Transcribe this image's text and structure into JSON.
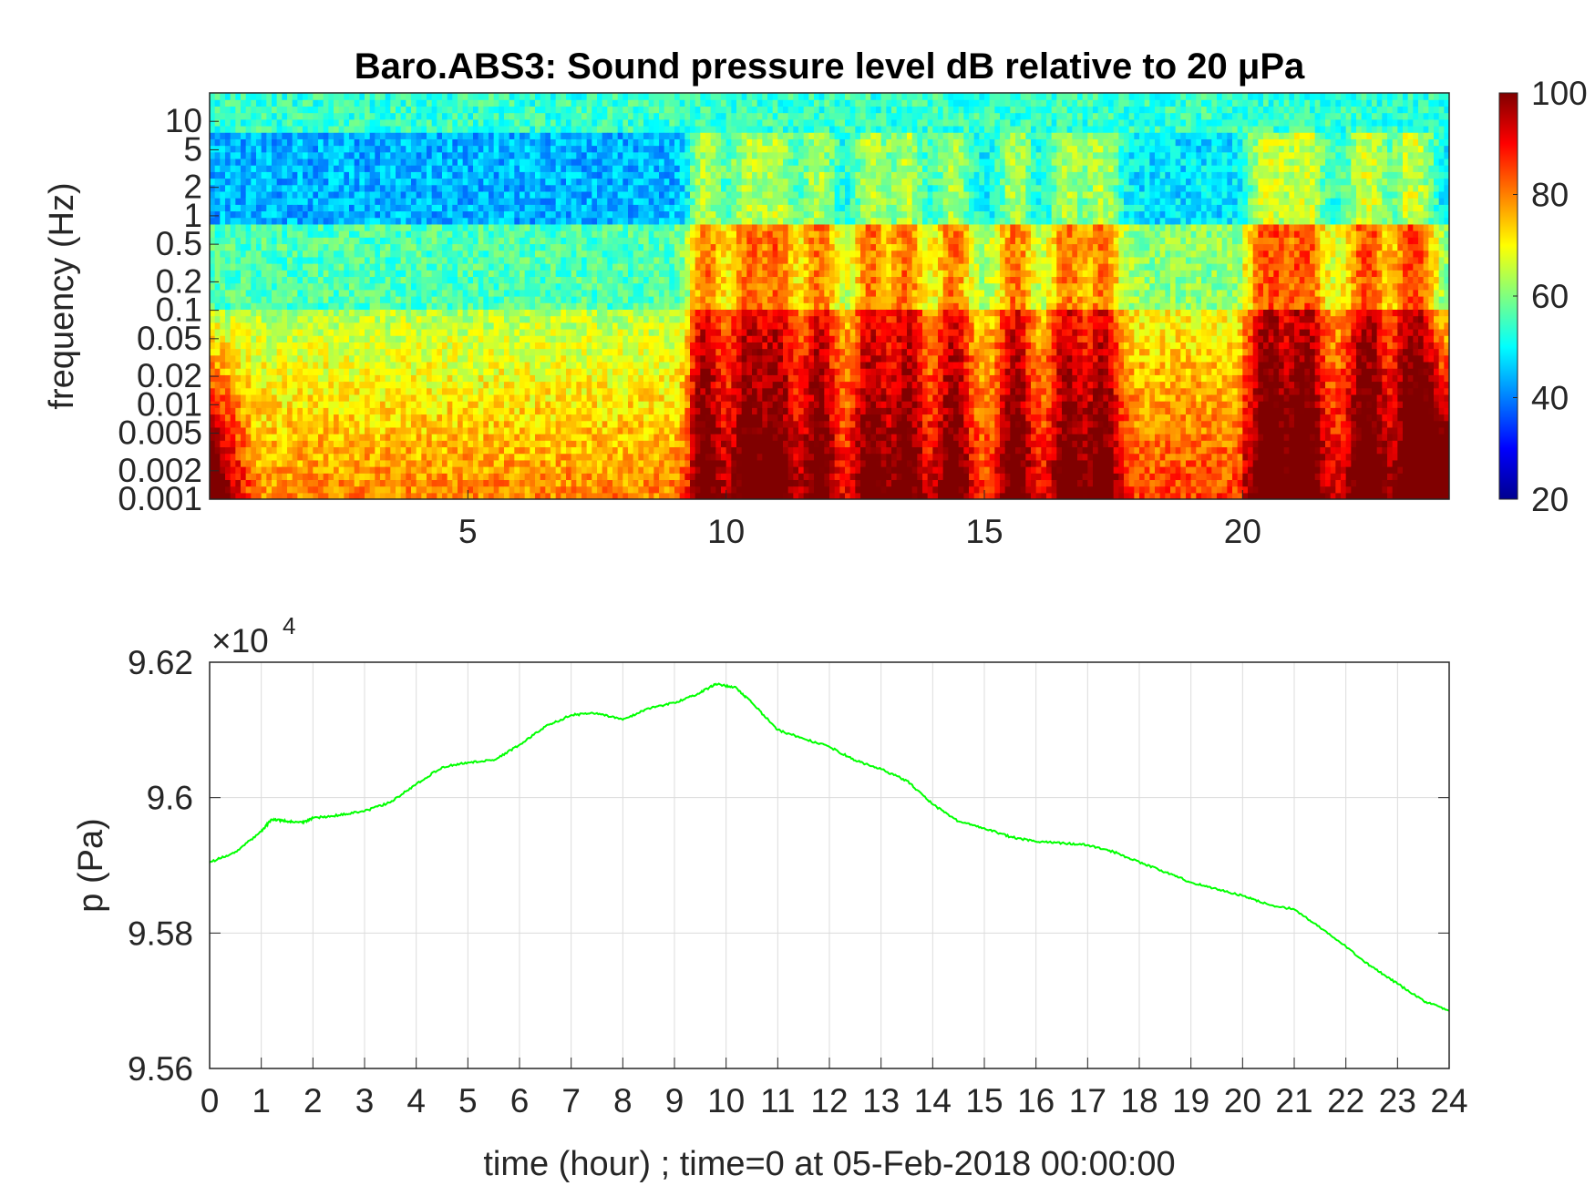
{
  "chart_data": [
    {
      "type": "heatmap",
      "title": "Baro.ABS3: Sound pressure level dB relative to 20 μPa",
      "ylabel": "frequency (Hz)",
      "xlabel": "",
      "y_scale": "log",
      "xlim": [
        0,
        24
      ],
      "ylim": [
        0.001,
        20
      ],
      "x_ticks": [
        5,
        10,
        15,
        20
      ],
      "y_ticks": [
        0.001,
        0.002,
        0.005,
        0.01,
        0.02,
        0.05,
        0.1,
        0.2,
        0.5,
        1,
        2,
        5,
        10
      ],
      "y_tick_labels": [
        "0.001",
        "0.002",
        "0.005",
        "0.01",
        "0.02",
        "0.05",
        "0.1",
        "0.2",
        "0.5",
        "1",
        "2",
        "5",
        "10"
      ],
      "colormap": "jet",
      "clim": [
        20,
        100
      ],
      "colorbar_ticks": [
        20,
        40,
        60,
        80,
        100
      ],
      "activity_hours": [
        9.6,
        10.4,
        11.0,
        11.8,
        12.8,
        13.5,
        14.4,
        15.6,
        16.6,
        17.3,
        20.5,
        21.2,
        22.4,
        23.3
      ]
    },
    {
      "type": "line",
      "title": "",
      "xlabel": "time (hour) ; time=0 at 05-Feb-2018 00:00:00",
      "ylabel": "p (Pa)",
      "xlim": [
        0,
        24
      ],
      "ylim": [
        95600,
        96200
      ],
      "x_ticks": [
        0,
        1,
        2,
        3,
        4,
        5,
        6,
        7,
        8,
        9,
        10,
        11,
        12,
        13,
        14,
        15,
        16,
        17,
        18,
        19,
        20,
        21,
        22,
        23,
        24
      ],
      "y_ticks": [
        95600,
        95800,
        96000,
        96200
      ],
      "y_tick_labels": [
        "9.56",
        "9.58",
        "9.6",
        "9.62"
      ],
      "y_exponent_label": "×10",
      "y_exponent_power": "4",
      "grid": true,
      "line_color": "#00ff00",
      "series": [
        {
          "x": [
            0,
            0.5,
            1,
            1.2,
            1.5,
            1.8,
            2,
            2.5,
            3,
            3.5,
            4,
            4.5,
            5,
            5.5,
            6,
            6.5,
            7,
            7.5,
            8,
            8.5,
            9,
            9.5,
            9.8,
            10.2,
            10.5,
            11,
            11.5,
            12,
            12.5,
            13,
            13.5,
            14,
            14.5,
            15,
            15.5,
            16,
            16.5,
            17,
            17.5,
            18,
            18.5,
            19,
            19.5,
            20,
            20.5,
            21,
            21.5,
            22,
            22.5,
            23,
            23.5,
            24
          ],
          "y": [
            95904,
            95920,
            95950,
            95968,
            95965,
            95963,
            95970,
            95974,
            95980,
            95993,
            96020,
            96045,
            96052,
            96055,
            96078,
            96105,
            96122,
            96125,
            96115,
            96132,
            96140,
            96155,
            96168,
            96162,
            96140,
            96100,
            96087,
            96075,
            96055,
            96042,
            96025,
            95990,
            95965,
            95955,
            95942,
            95935,
            95933,
            95930,
            95920,
            95905,
            95890,
            95875,
            95865,
            95855,
            95842,
            95835,
            95808,
            95780,
            95750,
            95725,
            95700,
            95685
          ]
        }
      ]
    }
  ]
}
